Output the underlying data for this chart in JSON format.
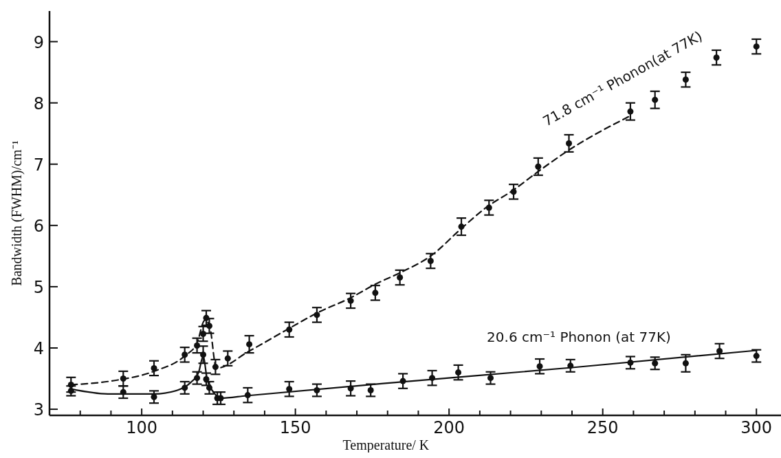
{
  "chart_data": {
    "type": "scatter",
    "xlabel": "Temperature/ K",
    "ylabel": "Bandwidth (FWHM)/cm⁻¹",
    "xlim": [
      70,
      308
    ],
    "xticks": [
      {
        "value": 80,
        "label": null
      },
      {
        "value": 90,
        "label": null
      },
      100,
      {
        "value": 110,
        "label": null
      },
      {
        "value": 120,
        "label": null
      },
      {
        "value": 130,
        "label": null
      },
      {
        "value": 140,
        "label": null
      },
      150,
      {
        "value": 160,
        "label": null
      },
      {
        "value": 170,
        "label": null
      },
      {
        "value": 180,
        "label": null
      },
      {
        "value": 190,
        "label": null
      },
      200,
      {
        "value": 210,
        "label": null
      },
      {
        "value": 220,
        "label": null
      },
      {
        "value": 230,
        "label": null
      },
      {
        "value": 240,
        "label": null
      },
      250,
      {
        "value": 260,
        "label": null
      },
      {
        "value": 270,
        "label": null
      },
      {
        "value": 280,
        "label": null
      },
      {
        "value": 290,
        "label": null
      },
      300
    ],
    "ylim": [
      2.9,
      9.5
    ],
    "yticks": [
      3,
      4,
      5,
      6,
      7,
      8,
      9
    ],
    "series": [
      {
        "color": "#111111",
        "marker": "circle",
        "x": [
          77,
          94,
          104,
          114,
          118,
          120,
          121,
          122,
          124,
          128,
          135,
          148,
          157,
          168,
          176,
          184,
          194,
          204,
          213,
          221,
          229,
          239,
          259,
          267,
          277,
          287,
          300
        ],
        "values": [
          3.4,
          3.5,
          3.67,
          3.89,
          4.04,
          4.23,
          4.49,
          4.36,
          3.69,
          3.83,
          4.06,
          4.3,
          4.54,
          4.77,
          4.9,
          5.15,
          5.42,
          5.98,
          6.29,
          6.55,
          6.96,
          7.34,
          7.86,
          8.05,
          8.38,
          8.74,
          8.92
        ],
        "errors": [
          0.12,
          0.12,
          0.12,
          0.12,
          0.12,
          0.12,
          0.12,
          0.12,
          0.12,
          0.12,
          0.14,
          0.12,
          0.12,
          0.12,
          0.12,
          0.12,
          0.12,
          0.14,
          0.12,
          0.12,
          0.14,
          0.14,
          0.14,
          0.14,
          0.12,
          0.12,
          0.12
        ]
      },
      {
        "type": "line",
        "name": "71.8 cm⁻¹ Phonon(at 77K)",
        "color": "#111111",
        "line_style": "dashed",
        "marker": "none",
        "x": [
          77,
          90,
          104,
          114,
          118,
          120.5,
          122,
          124.3,
          135,
          148,
          157,
          168,
          176,
          185,
          194,
          204,
          212,
          221,
          229,
          239,
          259
        ],
        "values": [
          3.4,
          3.46,
          3.62,
          3.87,
          4.08,
          4.45,
          4.38,
          3.67,
          3.95,
          4.32,
          4.57,
          4.82,
          5.04,
          5.25,
          5.5,
          5.95,
          6.29,
          6.58,
          6.88,
          7.23,
          7.79
        ]
      },
      {
        "color": "#111111",
        "marker": "circle",
        "x": [
          77,
          94,
          104,
          114,
          118,
          120,
          121,
          122,
          124.6,
          125.7,
          134.5,
          148,
          157,
          168,
          174.5,
          185,
          194.5,
          203,
          213.5,
          229.5,
          239.5,
          259,
          267,
          277,
          288,
          300
        ],
        "values": [
          3.3,
          3.28,
          3.2,
          3.35,
          3.51,
          3.89,
          3.49,
          3.35,
          3.18,
          3.18,
          3.23,
          3.33,
          3.31,
          3.34,
          3.31,
          3.46,
          3.51,
          3.6,
          3.51,
          3.7,
          3.71,
          3.76,
          3.75,
          3.75,
          3.95,
          3.87
        ],
        "errors": [
          0.08,
          0.1,
          0.1,
          0.1,
          0.1,
          0.14,
          0.1,
          0.1,
          0.1,
          0.1,
          0.12,
          0.12,
          0.1,
          0.12,
          0.1,
          0.12,
          0.12,
          0.12,
          0.1,
          0.12,
          0.1,
          0.1,
          0.1,
          0.14,
          0.12,
          0.1
        ]
      },
      {
        "type": "line",
        "name": "20.6 cm⁻¹ Phonon (at 77K)",
        "color": "#111111",
        "line_style": "solid",
        "marker": "none",
        "x": [
          77,
          89,
          104,
          111.6,
          116,
          118.5,
          120,
          121.3,
          123.5,
          125.7,
          134,
          178.6,
          240,
          300
        ],
        "values": [
          3.33,
          3.25,
          3.25,
          3.31,
          3.44,
          3.6,
          3.86,
          3.49,
          3.27,
          3.18,
          3.22,
          3.42,
          3.68,
          3.96
        ]
      }
    ]
  }
}
